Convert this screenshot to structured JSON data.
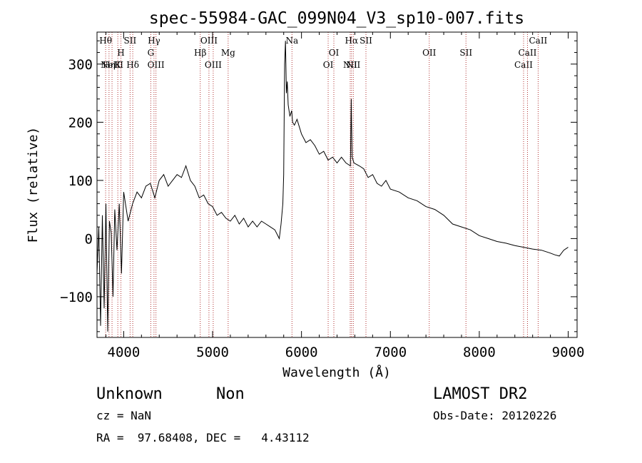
{
  "chart_data": {
    "type": "line",
    "title": "spec-55984-GAC_099N04_V3_sp10-007.fits",
    "xlabel": "Wavelength (Å)",
    "ylabel": "Flux (relative)",
    "xlim": [
      3700,
      9100
    ],
    "ylim": [
      -170,
      355
    ],
    "x_ticks": [
      4000,
      5000,
      6000,
      7000,
      8000,
      9000
    ],
    "y_ticks": [
      -100,
      0,
      100,
      200,
      300
    ],
    "x_tick_labels": [
      "4000",
      "5000",
      "6000",
      "7000",
      "8000",
      "9000"
    ],
    "y_tick_labels": [
      "−100",
      "0",
      "100",
      "200",
      "300"
    ],
    "grid": false,
    "spectrum_line_color": "#000000",
    "marker_line_color": "#b03030",
    "series": [
      {
        "x": [
          3700,
          3720,
          3740,
          3760,
          3780,
          3800,
          3820,
          3840,
          3860,
          3880,
          3900,
          3925,
          3950,
          3975,
          4000,
          4050,
          4100,
          4150,
          4200,
          4250,
          4300,
          4350,
          4400,
          4450,
          4500,
          4550,
          4600,
          4650,
          4700,
          4750,
          4800,
          4850,
          4900,
          4950,
          5000,
          5050,
          5100,
          5150,
          5200,
          5250,
          5300,
          5350,
          5400,
          5450,
          5500,
          5550,
          5600,
          5650,
          5700,
          5750,
          5770,
          5790,
          5800,
          5810,
          5820,
          5830,
          5840,
          5850,
          5870,
          5890,
          5900,
          5920,
          5950,
          6000,
          6050,
          6100,
          6150,
          6200,
          6250,
          6300,
          6350,
          6400,
          6450,
          6500,
          6550,
          6560,
          6563,
          6570,
          6590,
          6650,
          6700,
          6750,
          6800,
          6850,
          6900,
          6950,
          7000,
          7100,
          7200,
          7300,
          7400,
          7500,
          7600,
          7700,
          7800,
          7900,
          8000,
          8100,
          8200,
          8300,
          8400,
          8500,
          8600,
          8700,
          8800,
          8850,
          8900,
          8950,
          9000
        ],
        "y": [
          -60,
          20,
          -150,
          40,
          -120,
          60,
          -160,
          30,
          10,
          -100,
          50,
          -20,
          60,
          -60,
          80,
          30,
          60,
          80,
          70,
          90,
          95,
          70,
          100,
          110,
          90,
          100,
          110,
          105,
          125,
          100,
          90,
          70,
          75,
          60,
          55,
          40,
          45,
          35,
          30,
          40,
          25,
          35,
          20,
          30,
          20,
          30,
          25,
          20,
          15,
          0,
          25,
          60,
          110,
          300,
          340,
          250,
          270,
          230,
          210,
          220,
          200,
          195,
          205,
          180,
          165,
          170,
          160,
          145,
          150,
          135,
          140,
          130,
          140,
          130,
          125,
          240,
          200,
          140,
          130,
          125,
          120,
          105,
          110,
          95,
          90,
          100,
          85,
          80,
          70,
          65,
          55,
          50,
          40,
          25,
          20,
          15,
          5,
          0,
          -5,
          -8,
          -12,
          -15,
          -18,
          -20,
          -25,
          -28,
          -30,
          -20,
          -15
        ]
      }
    ],
    "line_markers": [
      {
        "wavelength": 3797,
        "label": "Hθ",
        "row": 0
      },
      {
        "wavelength": 3835,
        "label": "Hη",
        "row": 2
      },
      {
        "wavelength": 3869,
        "label": "NeIII",
        "row": 2
      },
      {
        "wavelength": 3934,
        "label": "K",
        "row": 2
      },
      {
        "wavelength": 3969,
        "label": "H",
        "row": 1
      },
      {
        "wavelength": 4072,
        "label": "SII",
        "row": 0
      },
      {
        "wavelength": 4102,
        "label": "Hδ",
        "row": 2
      },
      {
        "wavelength": 4305,
        "label": "G",
        "row": 1
      },
      {
        "wavelength": 4341,
        "label": "Hγ",
        "row": 0
      },
      {
        "wavelength": 4363,
        "label": "OIII",
        "row": 2
      },
      {
        "wavelength": 4861,
        "label": "Hβ",
        "row": 1
      },
      {
        "wavelength": 4959,
        "label": "OIII",
        "row": 0
      },
      {
        "wavelength": 5007,
        "label": "OIII",
        "row": 2
      },
      {
        "wavelength": 5175,
        "label": "Mg",
        "row": 1
      },
      {
        "wavelength": 5893,
        "label": "Na",
        "row": 0
      },
      {
        "wavelength": 6300,
        "label": "OI",
        "row": 2
      },
      {
        "wavelength": 6364,
        "label": "OI",
        "row": 1
      },
      {
        "wavelength": 6548,
        "label": "NII",
        "row": 2
      },
      {
        "wavelength": 6563,
        "label": "Hα",
        "row": 0
      },
      {
        "wavelength": 6583,
        "label": "NII",
        "row": 2
      },
      {
        "wavelength": 6725,
        "label": "SII",
        "row": 0
      },
      {
        "wavelength": 7437,
        "label": "OII",
        "row": 1
      },
      {
        "wavelength": 7850,
        "label": "SII",
        "row": 1
      },
      {
        "wavelength": 8498,
        "label": "CaII",
        "row": 2
      },
      {
        "wavelength": 8542,
        "label": "CaII",
        "row": 1
      },
      {
        "wavelength": 8662,
        "label": "CaII",
        "row": 0
      }
    ]
  },
  "info": {
    "class": "Unknown",
    "subclass": "Non",
    "survey": "LAMOST DR2",
    "cz": "cz = NaN",
    "obs_date": "Obs-Date: 20120226",
    "coords": "RA =  97.68408, DEC =   4.43112"
  }
}
